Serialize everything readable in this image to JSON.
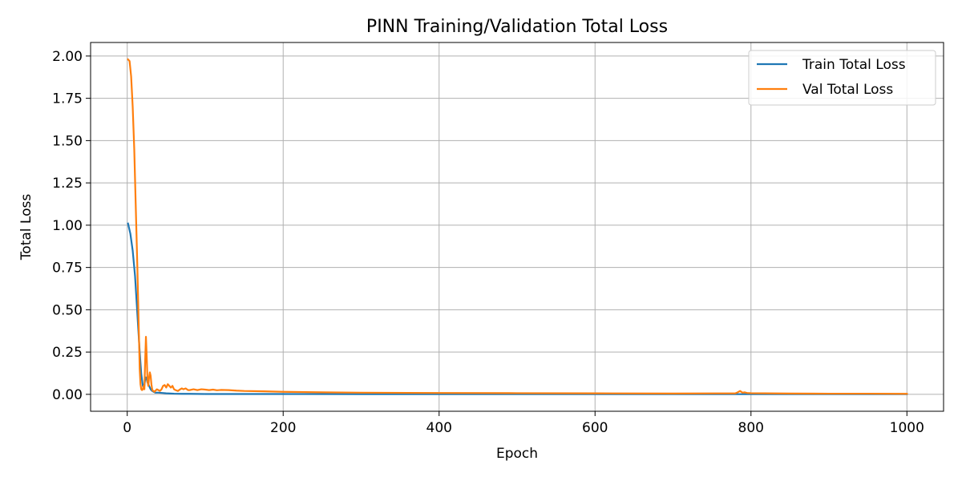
{
  "chart_data": {
    "type": "line",
    "title": "PINN Training/Validation Total Loss",
    "xlabel": "Epoch",
    "ylabel": "Total Loss",
    "xlim": [
      -47,
      1047
    ],
    "ylim": [
      -0.1,
      2.08
    ],
    "xticks": [
      0,
      200,
      400,
      600,
      800,
      1000
    ],
    "xtick_labels": [
      "0",
      "200",
      "400",
      "600",
      "800",
      "1000"
    ],
    "yticks": [
      0.0,
      0.25,
      0.5,
      0.75,
      1.0,
      1.25,
      1.5,
      1.75,
      2.0
    ],
    "ytick_labels": [
      "0.00",
      "0.25",
      "0.50",
      "0.75",
      "1.00",
      "1.25",
      "1.50",
      "1.75",
      "2.00"
    ],
    "grid": true,
    "legend_position": "top-right",
    "series": [
      {
        "name": "Train Total Loss",
        "color": "#1f77b4",
        "x": [
          1,
          4,
          7,
          10,
          12,
          14,
          16,
          18,
          20,
          21,
          22,
          23,
          24,
          25,
          26,
          28,
          30,
          32,
          34,
          36,
          40,
          45,
          50,
          55,
          60,
          70,
          80,
          100,
          150,
          200,
          300,
          400,
          500,
          600,
          700,
          800,
          900,
          1000
        ],
        "y": [
          1.01,
          0.95,
          0.85,
          0.7,
          0.55,
          0.4,
          0.25,
          0.12,
          0.05,
          0.04,
          0.05,
          0.09,
          0.1,
          0.09,
          0.07,
          0.05,
          0.03,
          0.02,
          0.015,
          0.01,
          0.01,
          0.008,
          0.006,
          0.005,
          0.004,
          0.003,
          0.003,
          0.002,
          0.002,
          0.002,
          0.001,
          0.001,
          0.001,
          0.001,
          0.001,
          0.001,
          0.001,
          0.001
        ]
      },
      {
        "name": "Val Total Loss",
        "color": "#ff7f0e",
        "x": [
          1,
          3,
          5,
          7,
          9,
          11,
          13,
          14,
          15,
          16,
          17,
          18,
          19,
          20,
          21,
          22,
          23,
          24,
          25,
          26,
          27,
          28,
          29,
          30,
          31,
          32,
          33,
          34,
          35,
          36,
          38,
          40,
          42,
          44,
          46,
          48,
          50,
          52,
          54,
          56,
          58,
          60,
          62,
          65,
          68,
          70,
          72,
          75,
          78,
          80,
          85,
          90,
          95,
          100,
          105,
          110,
          115,
          120,
          130,
          140,
          150,
          175,
          200,
          250,
          300,
          400,
          500,
          600,
          700,
          780,
          783,
          786,
          789,
          792,
          795,
          800,
          850,
          900,
          950,
          1000
        ],
        "y": [
          1.98,
          1.97,
          1.88,
          1.7,
          1.45,
          1.1,
          0.75,
          0.55,
          0.35,
          0.15,
          0.06,
          0.03,
          0.025,
          0.03,
          0.05,
          0.03,
          0.2,
          0.34,
          0.22,
          0.08,
          0.05,
          0.1,
          0.13,
          0.11,
          0.06,
          0.03,
          0.02,
          0.02,
          0.015,
          0.02,
          0.03,
          0.025,
          0.02,
          0.03,
          0.05,
          0.055,
          0.04,
          0.06,
          0.05,
          0.04,
          0.05,
          0.03,
          0.025,
          0.02,
          0.03,
          0.035,
          0.03,
          0.035,
          0.025,
          0.025,
          0.03,
          0.025,
          0.03,
          0.028,
          0.025,
          0.028,
          0.024,
          0.026,
          0.025,
          0.022,
          0.02,
          0.018,
          0.015,
          0.012,
          0.01,
          0.008,
          0.007,
          0.006,
          0.005,
          0.006,
          0.012,
          0.02,
          0.01,
          0.012,
          0.008,
          0.007,
          0.005,
          0.004,
          0.004,
          0.003
        ]
      }
    ]
  }
}
